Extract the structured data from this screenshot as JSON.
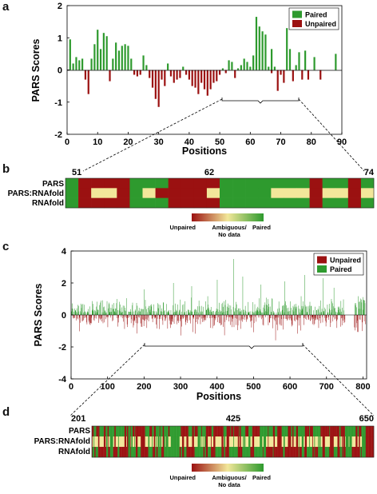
{
  "panels": {
    "a": {
      "letter": "a"
    },
    "b": {
      "letter": "b"
    },
    "c": {
      "letter": "c"
    },
    "d": {
      "letter": "d"
    }
  },
  "colors": {
    "paired": "#2e9a2e",
    "unpaired": "#9b1111",
    "ambiguous": "#f2e79a"
  },
  "chart_data": [
    {
      "type": "bar",
      "panel": "a",
      "xlabel": "Positions",
      "ylabel": "PARS Scores",
      "xlim": [
        0,
        90
      ],
      "ylim": [
        -2,
        2
      ],
      "x_ticks": [
        0,
        10,
        20,
        30,
        40,
        50,
        60,
        70,
        80,
        90
      ],
      "y_ticks": [
        -2,
        -1,
        0,
        1,
        2
      ],
      "legend": {
        "position": "top-right",
        "entries": [
          "Paired",
          "Unpaired"
        ]
      },
      "series": [
        {
          "name": "Paired",
          "color": "#2e9a2e",
          "x": [
            1,
            2,
            3,
            4,
            5,
            8,
            9,
            10,
            11,
            12,
            13,
            15,
            16,
            17,
            18,
            19,
            20,
            21,
            25,
            26,
            33,
            38,
            51,
            53,
            54,
            56,
            57,
            58,
            59,
            60,
            61,
            62,
            63,
            64,
            65,
            66,
            67,
            68,
            72,
            73,
            75,
            76,
            78,
            81,
            88
          ],
          "values": [
            0.95,
            0.2,
            0.4,
            0.3,
            0.35,
            0.35,
            0.8,
            1.25,
            0.65,
            1.15,
            1.05,
            0.35,
            0.85,
            0.6,
            0.75,
            0.8,
            0.75,
            0.35,
            0.45,
            0.15,
            0.2,
            0.1,
            0.05,
            0.3,
            0.25,
            0.05,
            0.15,
            0.35,
            0.25,
            0.1,
            0.45,
            1.65,
            1.35,
            1.2,
            1.1,
            0.1,
            0.65,
            0.1,
            1.3,
            0.65,
            0.15,
            0.55,
            0.6,
            0.4,
            0.5
          ]
        },
        {
          "name": "Unpaired",
          "color": "#9b1111",
          "x": [
            6,
            7,
            14,
            22,
            23,
            24,
            27,
            28,
            29,
            30,
            31,
            32,
            34,
            35,
            36,
            37,
            39,
            40,
            41,
            42,
            43,
            44,
            45,
            46,
            47,
            48,
            49,
            50,
            52,
            55,
            67,
            69,
            70,
            71,
            74,
            77,
            79,
            83
          ],
          "values": [
            -0.3,
            -0.75,
            -0.35,
            -0.15,
            -0.2,
            -0.15,
            -0.25,
            -0.55,
            -0.9,
            -1.15,
            -0.3,
            -0.5,
            -0.2,
            -0.4,
            -0.3,
            -0.25,
            -0.15,
            -0.3,
            -0.5,
            -0.55,
            -0.75,
            -0.4,
            -0.6,
            -0.8,
            -0.6,
            -0.4,
            -0.35,
            -0.15,
            -0.1,
            -0.25,
            -0.1,
            -0.65,
            -0.15,
            -0.4,
            -0.35,
            -0.3,
            -0.3,
            -0.3
          ]
        }
      ],
      "annotation": {
        "from": 51,
        "to": 74
      }
    },
    {
      "type": "heatmap",
      "panel": "b",
      "rows": [
        "PARS",
        "PARS:RNAfold",
        "RNAfold"
      ],
      "top_labels": [
        "51",
        "62",
        "74"
      ],
      "columns": 24,
      "encoding": {
        "0": "Unpaired",
        "1": "Ambiguous/ No data",
        "2": "Paired"
      },
      "values": [
        [
          2,
          0,
          0,
          0,
          0,
          2,
          2,
          2,
          0,
          0,
          0,
          0,
          2,
          2,
          2,
          2,
          2,
          2,
          2,
          0,
          2,
          2,
          0,
          2
        ],
        [
          2,
          0,
          1,
          1,
          0,
          2,
          1,
          0,
          0,
          0,
          0,
          1,
          2,
          2,
          2,
          2,
          1,
          1,
          1,
          0,
          1,
          1,
          0,
          1
        ],
        [
          2,
          0,
          0,
          0,
          0,
          2,
          2,
          2,
          0,
          0,
          0,
          0,
          2,
          2,
          2,
          2,
          2,
          2,
          2,
          0,
          2,
          2,
          0,
          2
        ]
      ],
      "colorbar": {
        "labels": [
          "Unpaired",
          "Ambiguous/",
          "No data",
          "Paired"
        ]
      }
    },
    {
      "type": "bar",
      "panel": "c",
      "xlabel": "Positions",
      "ylabel": "PARS Scores",
      "xlim": [
        0,
        810
      ],
      "ylim": [
        -4,
        4
      ],
      "x_ticks": [
        0,
        100,
        200,
        300,
        400,
        500,
        600,
        700,
        800
      ],
      "y_ticks": [
        -4,
        -2,
        0,
        2,
        4
      ],
      "legend": {
        "position": "top-right",
        "entries": [
          "Unpaired",
          "Paired"
        ]
      },
      "series": [
        {
          "name": "Unpaired",
          "color": "#9b1111",
          "summary": "dense negative bars, mostly -0.2 to -1.0, peaks near -2.0 around positions 300, 420, 560"
        },
        {
          "name": "Paired",
          "color": "#2e9a2e",
          "summary": "dense positive bars, mostly 0.2 to 1.5, peaks near 3.5 around position 445 and 2.5 around 640-690; gap 750-775"
        }
      ],
      "annotation": {
        "from": 201,
        "to": 650
      }
    },
    {
      "type": "heatmap",
      "panel": "d",
      "rows": [
        "PARS",
        "PARS:RNAfold",
        "RNAfold"
      ],
      "top_labels": [
        "201",
        "425",
        "650"
      ],
      "columns": 450,
      "encoding": {
        "0": "Unpaired",
        "1": "Ambiguous/ No data",
        "2": "Paired"
      },
      "colorbar": {
        "labels": [
          "Unpaired",
          "Ambiguous/",
          "No data",
          "Paired"
        ]
      }
    }
  ]
}
